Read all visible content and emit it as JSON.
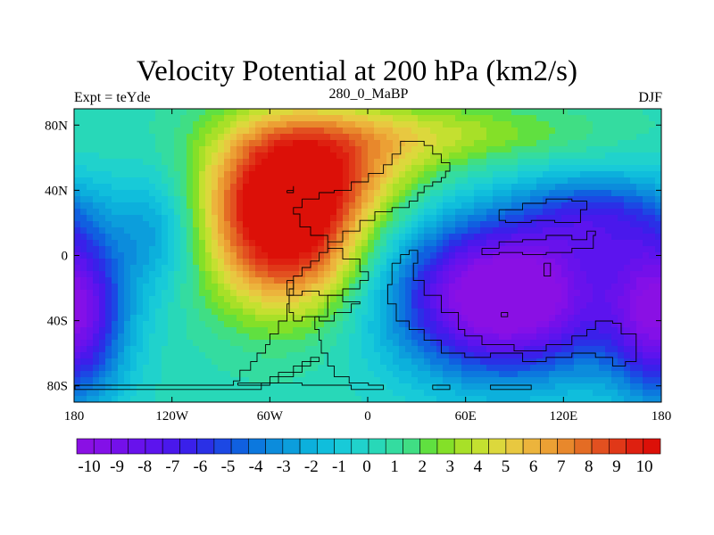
{
  "chart_data": {
    "type": "heatmap",
    "title": "Velocity Potential at 200 hPa (km2/s)",
    "left_string": "Expt = teYde",
    "center_string": "280_0_MaBP",
    "right_string": "DJF",
    "xlim": [
      -180,
      180
    ],
    "ylim": [
      -90,
      90
    ],
    "x_ticks": [
      {
        "value": -180,
        "label": "180"
      },
      {
        "value": -120,
        "label": "120W"
      },
      {
        "value": -60,
        "label": "60W"
      },
      {
        "value": 0,
        "label": "0"
      },
      {
        "value": 60,
        "label": "60E"
      },
      {
        "value": 120,
        "label": "120E"
      },
      {
        "value": 180,
        "label": "180"
      }
    ],
    "y_ticks": [
      {
        "value": 80,
        "label": "80N"
      },
      {
        "value": 40,
        "label": "40N"
      },
      {
        "value": 0,
        "label": "0"
      },
      {
        "value": -40,
        "label": "40S"
      },
      {
        "value": -80,
        "label": "80S"
      }
    ],
    "field_centers": [
      {
        "lon": -50,
        "lat": 20,
        "value": 10.5,
        "region": "Western hemisphere maximum"
      },
      {
        "lon": 90,
        "lat": -25,
        "value": -10.5,
        "region": "Eastern hemisphere minimum"
      },
      {
        "lon": -180,
        "lat": -35,
        "value": -9,
        "region": "Dateline south minimum"
      }
    ],
    "colorbar": {
      "min": -10.5,
      "max": 10.5,
      "step": 0.5,
      "labels": [
        "-10",
        "-9",
        "-8",
        "-7",
        "-6",
        "-5",
        "-4",
        "-3",
        "-2",
        "-1",
        "0",
        "1",
        "2",
        "3",
        "4",
        "5",
        "6",
        "7",
        "8",
        "9",
        "10"
      ],
      "colors": [
        "#8a10e4",
        "#8310e8",
        "#7410ea",
        "#6812ec",
        "#5c14ee",
        "#4a18ec",
        "#3a20ea",
        "#2a30e6",
        "#1c48e4",
        "#1060e0",
        "#0c78de",
        "#0c8cdc",
        "#0c9edc",
        "#0cb0dc",
        "#10bedc",
        "#18cad8",
        "#20d2cc",
        "#28d8b8",
        "#34dca0",
        "#40de84",
        "#60e040",
        "#84e028",
        "#a8e028",
        "#c4e030",
        "#dcd83c",
        "#e8c840",
        "#ecb43c",
        "#eca034",
        "#e8882c",
        "#e46c24",
        "#e25020",
        "#e03818",
        "#de2010",
        "#dc1008"
      ]
    },
    "coastlines": "continental outlines (Pangaea configuration)"
  }
}
